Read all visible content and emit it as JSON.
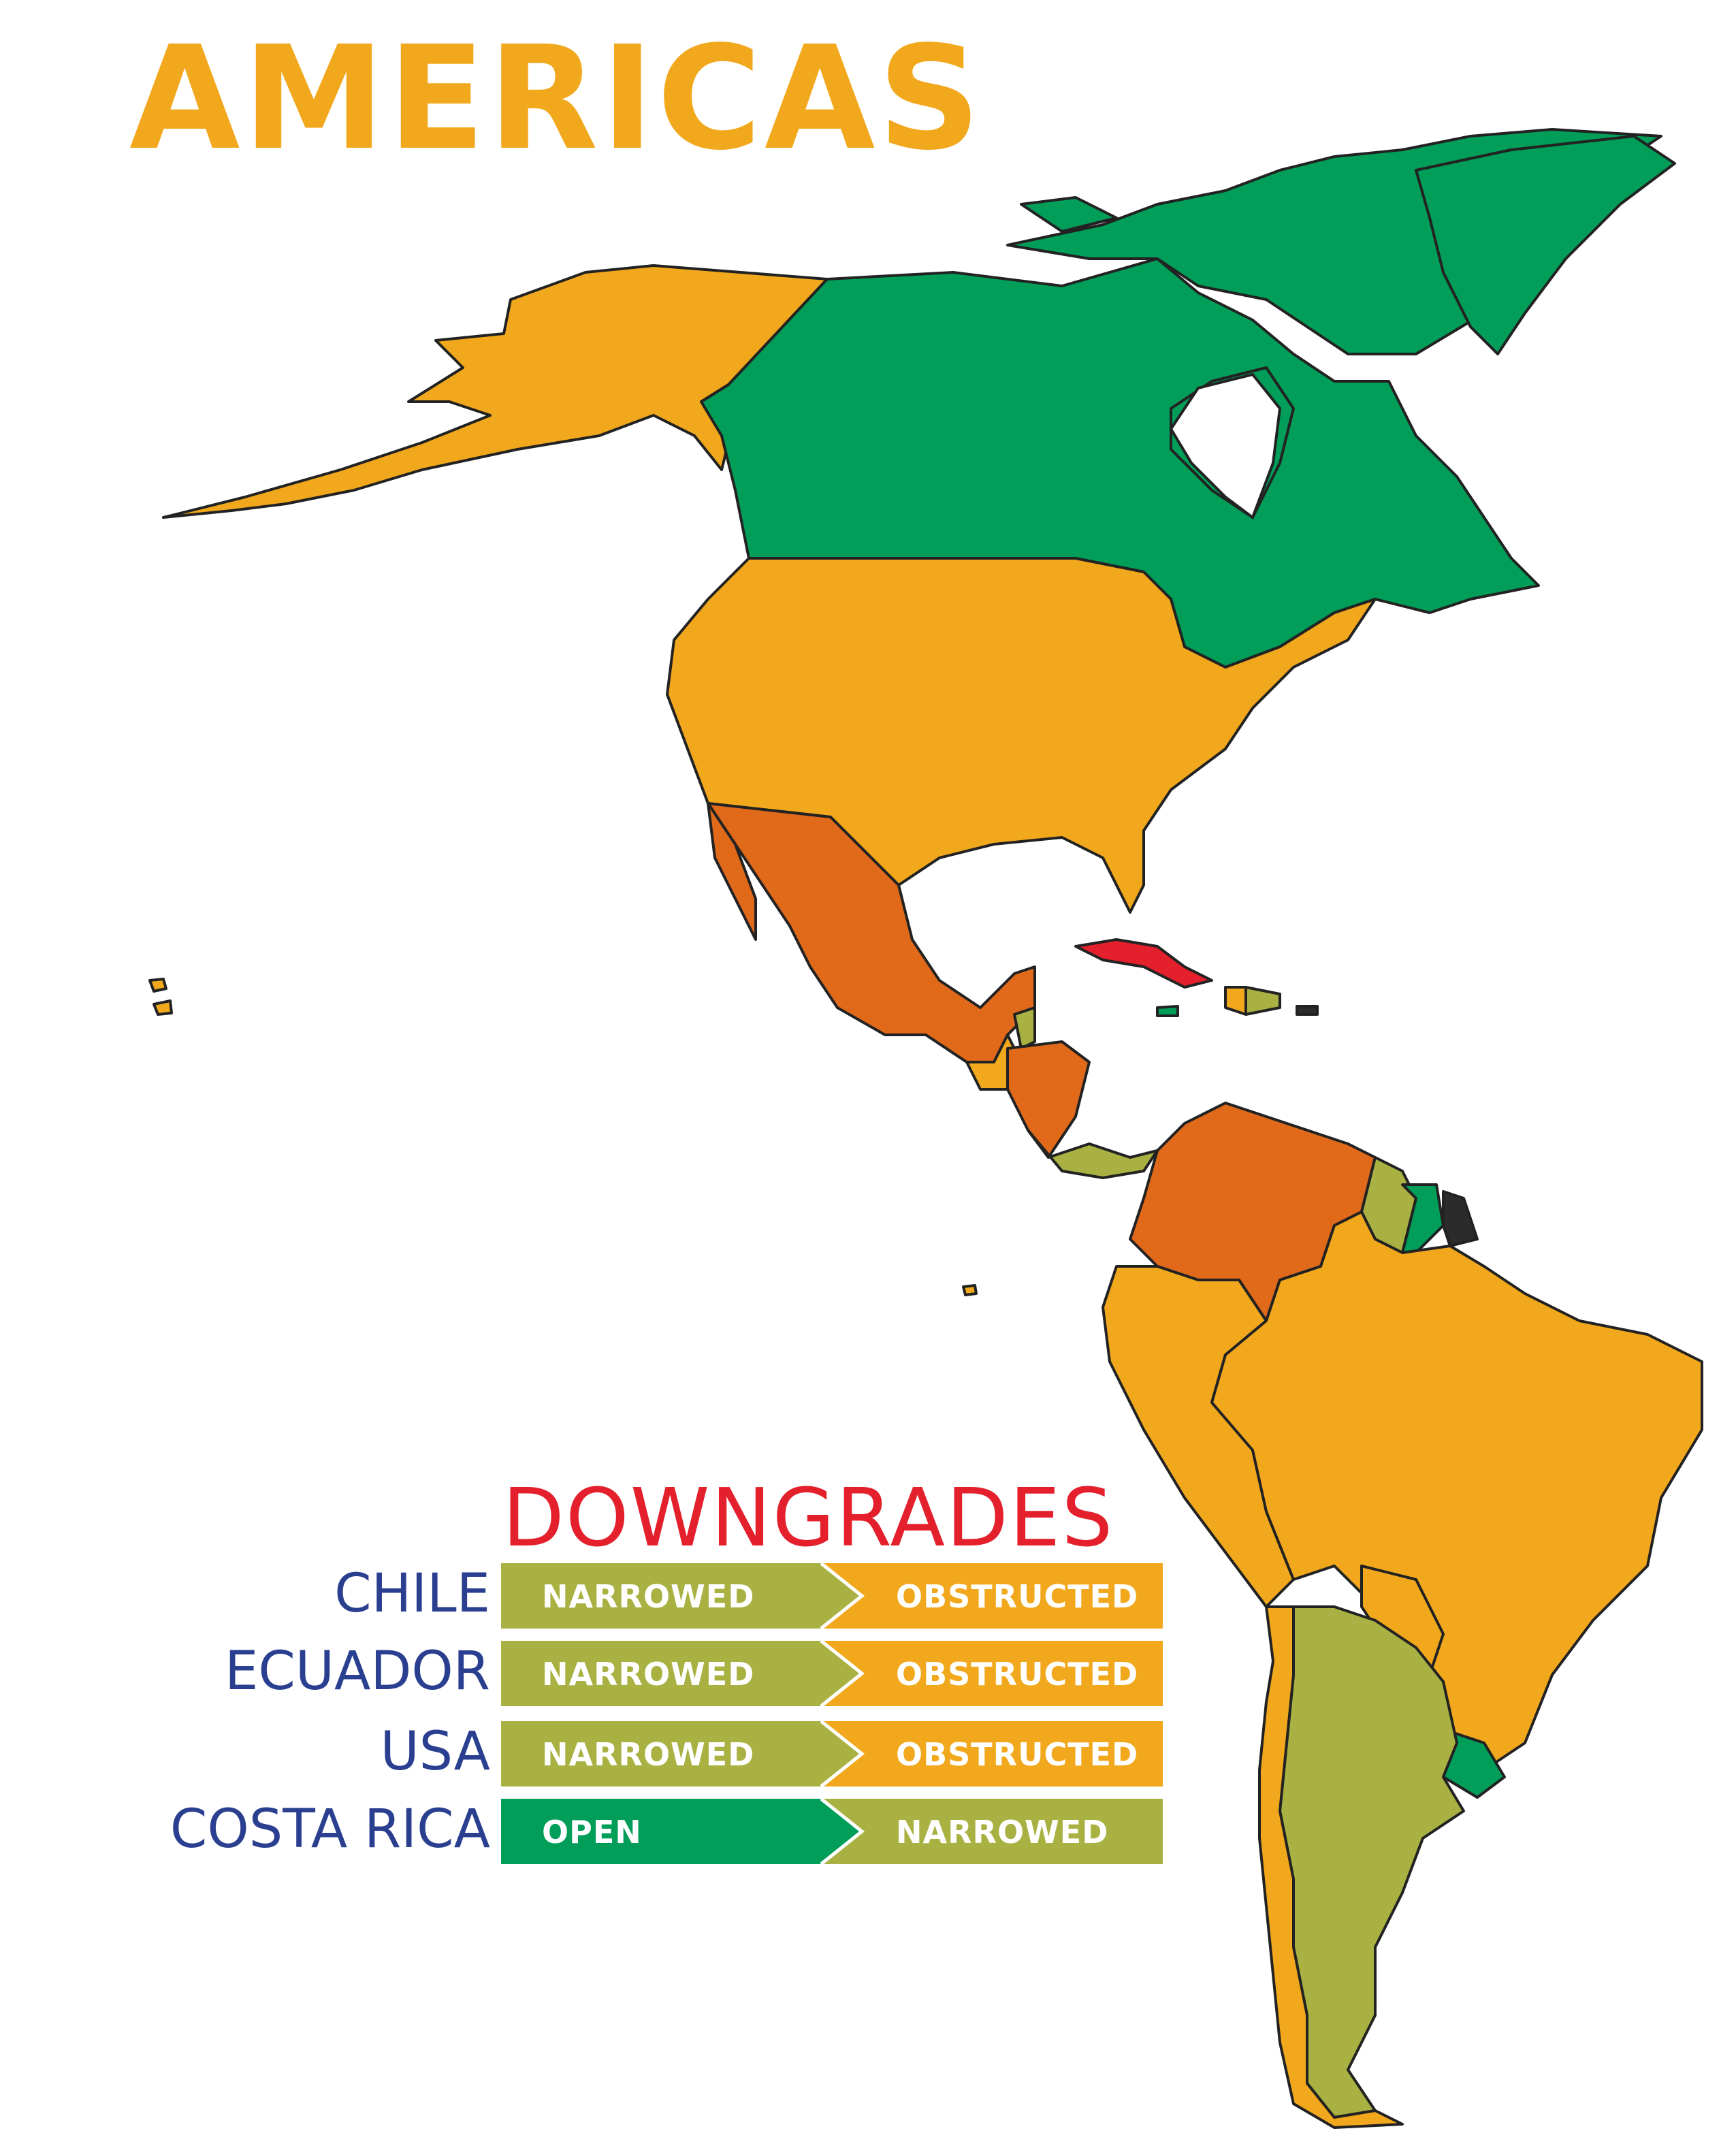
{
  "title": "AMERICAS",
  "legend": {
    "heading": "DOWNGRADES",
    "rows": [
      {
        "country": "CHILE",
        "from": "NARROWED",
        "to": "OBSTRUCTED",
        "from_color": "#a9b142",
        "to_color": "#f2a81c"
      },
      {
        "country": "ECUADOR",
        "from": "NARROWED",
        "to": "OBSTRUCTED",
        "from_color": "#a9b142",
        "to_color": "#f2a81c"
      },
      {
        "country": "USA",
        "from": "NARROWED",
        "to": "OBSTRUCTED",
        "from_color": "#a9b142",
        "to_color": "#f2a81c"
      },
      {
        "country": "COSTA RICA",
        "from": "OPEN",
        "to": "NARROWED",
        "from_color": "#009e58",
        "to_color": "#a9b142"
      }
    ]
  },
  "colors": {
    "title": "#f2a81c",
    "heading": "#e3202b",
    "country_label": "#2a3f8f",
    "open": "#009e58",
    "narrowed": "#a9b142",
    "obstructed": "#f2a81c",
    "repressed": "#e0691a",
    "closed": "#e3202b",
    "no_data": "#2b2b2b",
    "outline": "#222222"
  }
}
